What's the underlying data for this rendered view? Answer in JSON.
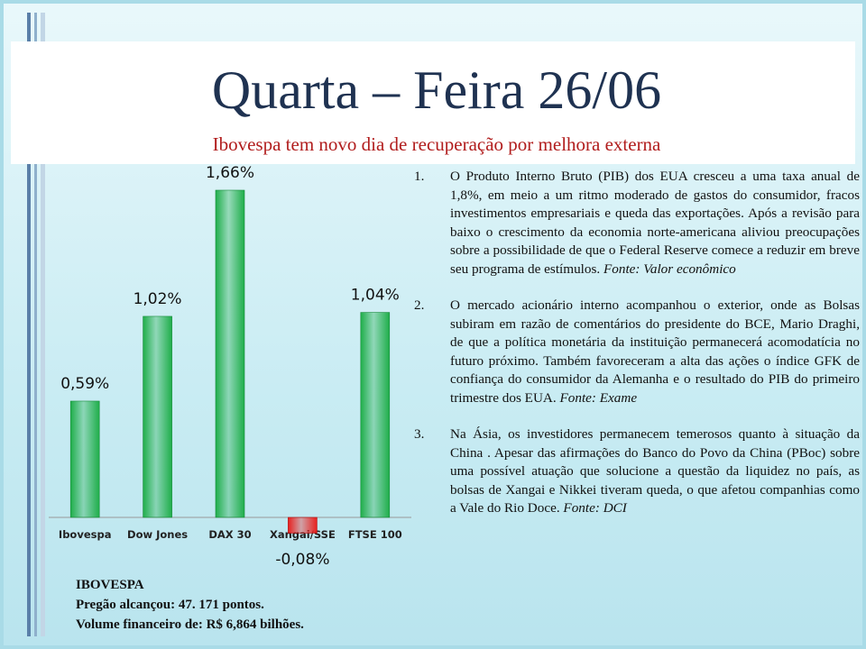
{
  "title": "Quarta – Feira 26/06",
  "subtitle": "Ibovespa tem novo dia de recuperação por melhora externa",
  "chart_data": {
    "type": "bar",
    "categories": [
      "Ibovespa",
      "Dow Jones",
      "DAX 30",
      "Xangai/SSE",
      "FTSE 100"
    ],
    "values": [
      0.59,
      1.02,
      1.66,
      -0.08,
      1.04
    ],
    "value_labels": [
      "0,59%",
      "1,02%",
      "1,66%",
      "-0,08%",
      "1,04%"
    ],
    "color": "#1fae4a",
    "negative_color": "#e8201e"
  },
  "summary": {
    "heading": "IBOVESPA",
    "lines": [
      "Pregão alcançou: 47. 171 pontos.",
      "Volume financeiro de: R$  6,864 bilhões."
    ]
  },
  "items": [
    {
      "number": "1.",
      "text": "O Produto Interno Bruto (PIB) dos EUA cresceu a uma taxa anual de 1,8%, em meio a um ritmo moderado de gastos do consumidor, fracos investimentos empresariais e queda das exportações. Após a revisão para baixo o crescimento da economia norte-americana aliviou preocupações sobre a possibilidade de que o Federal Reserve comece a reduzir em breve seu programa de estímulos.",
      "source": "Fonte: Valor econômico"
    },
    {
      "number": "2.",
      "text": "O mercado acionário interno acompanhou o exterior, onde as Bolsas subiram em razão de comentários do presidente do BCE, Mario Draghi, de que a política monetária da instituição permanecerá acomodatícia no futuro próximo. Também favoreceram a alta das ações o índice GFK de confiança do consumidor da Alemanha e o resultado do PIB do primeiro trimestre dos EUA.",
      "source": "Fonte: Exame"
    },
    {
      "number": "3.",
      "text": "Na Ásia, os investidores permanecem temerosos quanto à situação da China . Apesar das afirmações do Banco do Povo da China (PBoc) sobre uma possível atuação que solucione a questão da liquidez no país, as bolsas de Xangai e Nikkei tiveram queda, o que afetou companhias como a Vale do Rio Doce.",
      "source": "Fonte: DCI"
    }
  ]
}
